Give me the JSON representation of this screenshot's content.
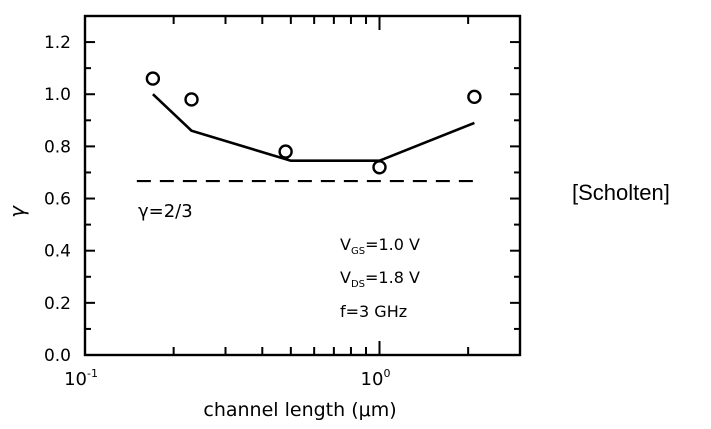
{
  "chart_data": {
    "type": "scatter",
    "xscale": "log",
    "xlim": [
      0.1,
      3.0
    ],
    "ylim": [
      0.0,
      1.3
    ],
    "xlabel": "channel length (μm)",
    "ylabel": "γ",
    "x_ticks": [
      {
        "value": 0.1,
        "base": "10",
        "exp": "-1"
      },
      {
        "value": 1.0,
        "base": "10",
        "exp": "0"
      }
    ],
    "y_ticks": [
      "0.0",
      "0.2",
      "0.4",
      "0.6",
      "0.8",
      "1.0",
      "1.2"
    ],
    "y_tick_values": [
      0.0,
      0.2,
      0.4,
      0.6,
      0.8,
      1.0,
      1.2
    ],
    "series": [
      {
        "kind": "markers",
        "marker": "open-circle",
        "x": [
          0.17,
          0.23,
          0.48,
          1.0,
          2.1
        ],
        "y": [
          1.06,
          0.98,
          0.78,
          0.72,
          0.99
        ]
      },
      {
        "kind": "line",
        "x": [
          0.17,
          0.23,
          0.5,
          1.0,
          2.1
        ],
        "y": [
          1.0,
          0.86,
          0.745,
          0.745,
          0.89
        ]
      },
      {
        "kind": "reference-dashed",
        "x": [
          0.15,
          2.2
        ],
        "y": [
          0.667,
          0.667
        ]
      }
    ],
    "annotations": {
      "gamma_ref": "γ=2/3",
      "vgs": {
        "base": "V",
        "sub": "GS",
        "rest": "=1.0 V"
      },
      "vds": {
        "base": "V",
        "sub": "DS",
        "rest": "=1.8 V"
      },
      "freq": "f=3 GHz"
    },
    "grid": false
  },
  "side_label": "[Scholten]"
}
